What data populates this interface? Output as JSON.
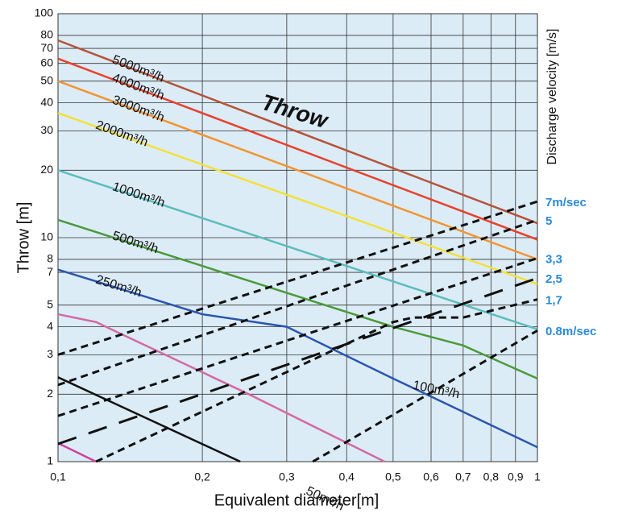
{
  "chart_data": {
    "type": "line",
    "log_x": true,
    "log_y": true,
    "grid": true,
    "annotation": "Throw",
    "xlabel": "Equivalent diameter[m]",
    "ylabel": "Throw [m]",
    "y2label": "Discharge velocity [m/s]",
    "xlim": [
      0.1,
      1
    ],
    "ylim": [
      1,
      100
    ],
    "xticks": [
      {
        "value": 0.1,
        "label": "0,1"
      },
      {
        "value": 0.2,
        "label": "0,2"
      },
      {
        "value": 0.3,
        "label": "0,3"
      },
      {
        "value": 0.4,
        "label": "0,4"
      },
      {
        "value": 0.5,
        "label": "0,5"
      },
      {
        "value": 0.6,
        "label": "0,6"
      },
      {
        "value": 0.7,
        "label": "0,7"
      },
      {
        "value": 0.8,
        "label": "0,8"
      },
      {
        "value": 0.9,
        "label": "0,9"
      },
      1
    ],
    "yticks": [
      1,
      2,
      3,
      4,
      5,
      7,
      8,
      10,
      20,
      30,
      40,
      50,
      60,
      70,
      80,
      100
    ],
    "series": [
      {
        "name": "5000m³/h",
        "color": "#b5533a",
        "x": [
          0.1,
          1
        ],
        "values": [
          76,
          11.6
        ]
      },
      {
        "name": "4000m³/h",
        "color": "#e8402c",
        "x": [
          0.1,
          1
        ],
        "values": [
          63,
          9.8
        ]
      },
      {
        "name": "3000m³/h",
        "color": "#f29433",
        "x": [
          0.1,
          1
        ],
        "values": [
          50,
          8
        ]
      },
      {
        "name": "2000m³/h",
        "color": "#f4e03a",
        "x": [
          0.1,
          1
        ],
        "values": [
          36,
          6.2
        ]
      },
      {
        "name": "1000m³/h",
        "color": "#5cbcbc",
        "x": [
          0.1,
          1
        ],
        "values": [
          20,
          3.9
        ]
      },
      {
        "name": "500m³/h",
        "color": "#4a9a3a",
        "x": [
          0.1,
          0.5,
          0.7,
          1
        ],
        "values": [
          12,
          4,
          3.3,
          2.35
        ]
      },
      {
        "name": "250m³/h",
        "color": "#2a55b0",
        "x": [
          0.1,
          0.2,
          0.3,
          0.5,
          1
        ],
        "values": [
          7.2,
          4.55,
          4,
          2.35,
          1.16
        ]
      },
      {
        "name": "100m³/h",
        "color": "#d36aa2",
        "x": [
          0.1,
          0.12,
          0.25,
          0.48
        ],
        "values": [
          4.55,
          4.2,
          2,
          1
        ]
      },
      {
        "name": "50m³/h",
        "color": "#111111",
        "x": [
          0.1,
          0.24
        ],
        "values": [
          2.38,
          1
        ]
      },
      {
        "color": "#d040a0",
        "x": [
          0.1,
          0.12
        ],
        "values": [
          1.21,
          1
        ]
      },
      {
        "name": "7m/sec",
        "color": "#111111",
        "style": "dashed",
        "x": [
          0.1,
          1
        ],
        "values": [
          3,
          14.5
        ]
      },
      {
        "name": "5",
        "color": "#111111",
        "style": "dashed",
        "x": [
          0.1,
          1
        ],
        "values": [
          2.2,
          12
        ]
      },
      {
        "name": "3,3",
        "color": "#111111",
        "style": "dashed",
        "x": [
          0.1,
          1
        ],
        "values": [
          1.6,
          8.1
        ]
      },
      {
        "name": "2,5",
        "color": "#111111",
        "style": "longdash",
        "x": [
          0.1,
          1
        ],
        "values": [
          1.2,
          6.6
        ]
      },
      {
        "name": "1,7",
        "color": "#111111",
        "style": "dashed",
        "x": [
          0.12,
          0.5,
          0.55,
          0.7,
          1
        ],
        "values": [
          1,
          4.2,
          4.4,
          4.4,
          5.3
        ]
      },
      {
        "name": "0.8m/sec",
        "color": "#111111",
        "style": "dashed",
        "x": [
          0.34,
          1
        ],
        "values": [
          1,
          3.85
        ]
      }
    ]
  }
}
